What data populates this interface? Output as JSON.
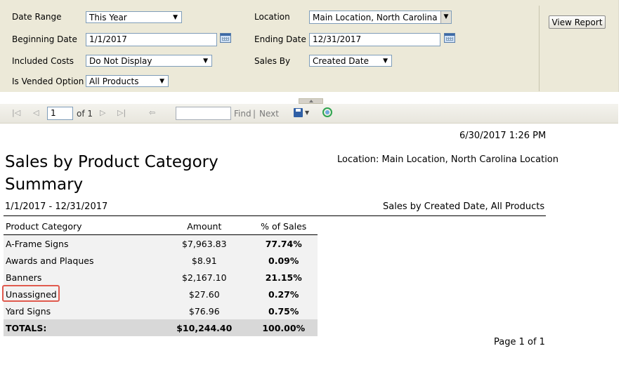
{
  "params": {
    "date_range_label": "Date Range",
    "date_range_value": "This Year",
    "beginning_date_label": "Beginning Date",
    "beginning_date_value": "1/1/2017",
    "included_costs_label": "Included Costs",
    "included_costs_value": "Do Not Display",
    "is_vended_label": "Is Vended Option",
    "is_vended_value": "All Products",
    "location_label": "Location",
    "location_value": "Main Location, North Carolina Location",
    "ending_date_label": "Ending Date",
    "ending_date_value": "12/31/2017",
    "sales_by_label": "Sales By",
    "sales_by_value": "Created Date",
    "view_report_label": "View Report"
  },
  "toolbar": {
    "page_value": "1",
    "of_label": "of 1",
    "find_value": "",
    "find_label": "Find",
    "separator": "|",
    "next_label": "Next"
  },
  "report": {
    "timestamp": "6/30/2017 1:26 PM",
    "title_line1": "Sales by Product Category",
    "title_line2": "Summary",
    "location_text": "Location: Main Location, North Carolina Location",
    "date_range_text": "1/1/2017 - 12/31/2017",
    "subtitle_right": "Sales by Created Date, All Products",
    "table": {
      "headers": [
        "Product Category",
        "Amount",
        "% of Sales"
      ],
      "rows": [
        {
          "category": "A-Frame Signs",
          "amount": "$7,963.83",
          "pct": "77.74%"
        },
        {
          "category": "Awards and Plaques",
          "amount": "$8.91",
          "pct": "0.09%"
        },
        {
          "category": "Banners",
          "amount": "$2,167.10",
          "pct": "21.15%"
        },
        {
          "category": "Unassigned",
          "amount": "$27.60",
          "pct": "0.27%"
        },
        {
          "category": "Yard Signs",
          "amount": "$76.96",
          "pct": "0.75%"
        }
      ],
      "totals": {
        "label": "TOTALS:",
        "amount": "$10,244.40",
        "pct": "100.00%"
      }
    },
    "page_footer": "Page 1 of 1"
  },
  "colors": {
    "panel_bg": "#ece9d8",
    "highlight_border": "#e05a4e",
    "totals_bg": "#d8d8d8"
  }
}
